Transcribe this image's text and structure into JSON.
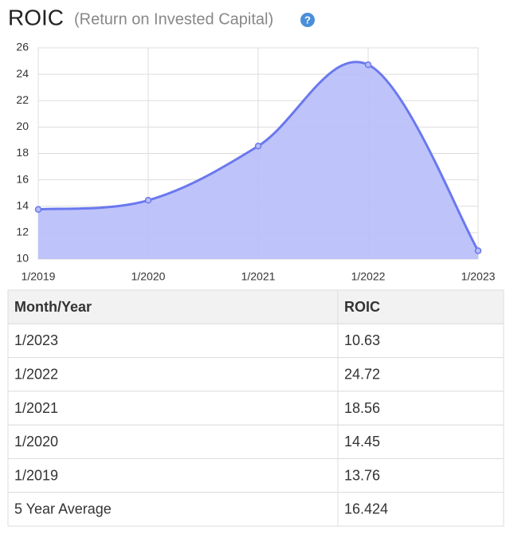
{
  "chart_data": {
    "type": "area",
    "title": "ROIC",
    "subtitle": "(Return on Invested Capital)",
    "help_icon": "?",
    "categories": [
      "1/2019",
      "1/2020",
      "1/2021",
      "1/2022",
      "1/2023"
    ],
    "values": [
      13.76,
      14.45,
      18.56,
      24.72,
      10.63
    ],
    "color": "#6b78ee",
    "fill": "#b7bef9",
    "ylim": [
      10,
      26
    ],
    "yticks": [
      10,
      12,
      14,
      16,
      18,
      20,
      22,
      24,
      26
    ],
    "grid": true
  },
  "table": {
    "header": [
      "Month/Year",
      "ROIC"
    ],
    "rows": [
      [
        "1/2023",
        10.63
      ],
      [
        "1/2022",
        24.72
      ],
      [
        "1/2021",
        18.56
      ],
      [
        "1/2020",
        14.45
      ],
      [
        "1/2019",
        13.76
      ],
      [
        "5 Year Average",
        16.424
      ]
    ]
  }
}
